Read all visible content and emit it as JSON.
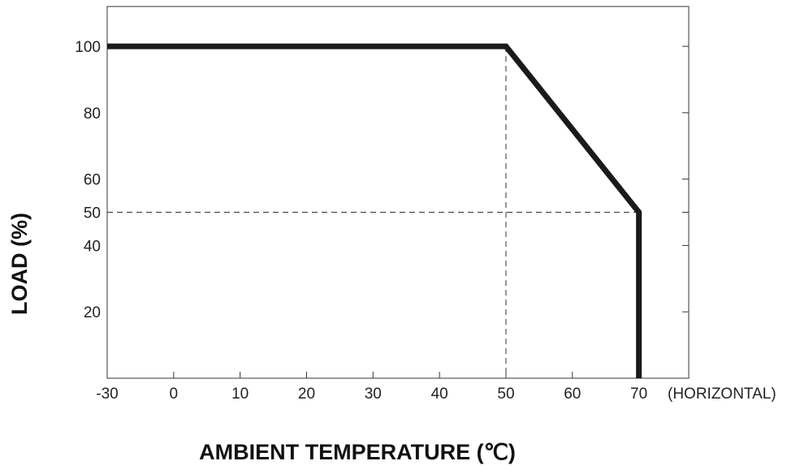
{
  "chart_data": {
    "type": "line",
    "x_label": "AMBIENT TEMPERATURE (℃)",
    "y_label": "LOAD (%)",
    "annotation": "(HORIZONTAL)",
    "x": [
      -30,
      50,
      70,
      70
    ],
    "series": [
      {
        "color": "#1a1a1a",
        "values": [
          100,
          100,
          50,
          0
        ]
      }
    ],
    "xlim": [
      -30,
      77.5
    ],
    "xticks": [
      -30,
      0,
      10,
      20,
      30,
      40,
      50,
      60,
      70
    ],
    "ylim": [
      0,
      112
    ],
    "yticks": [
      20,
      40,
      50,
      60,
      80,
      100
    ]
  }
}
